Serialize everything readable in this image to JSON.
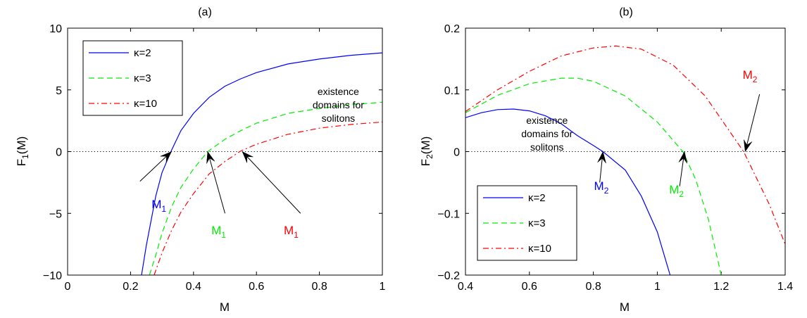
{
  "chart_data": [
    {
      "type": "line",
      "title": "(a)",
      "xlabel": "M",
      "ylabel": "F",
      "ylabel_sub": "1",
      "ylabel_tail": "(M)",
      "xlim": [
        0,
        1
      ],
      "ylim": [
        -10,
        10
      ],
      "xticks": [
        0,
        0.2,
        0.4,
        0.6,
        0.8,
        1
      ],
      "xtick_labels": [
        "0",
        "0.2",
        "0.4",
        "0.6",
        "0.8",
        "1"
      ],
      "yticks": [
        -10,
        -5,
        0,
        5,
        10
      ],
      "ytick_labels": [
        "−10",
        "−5",
        "0",
        "5",
        "10"
      ],
      "grid": false,
      "zero_line": "dotted",
      "legend_position": "top-left",
      "series": [
        {
          "name": "κ=2",
          "color": "#0000ff",
          "dash": "solid",
          "x": [
            0.235,
            0.25,
            0.28,
            0.3,
            0.33,
            0.36,
            0.4,
            0.45,
            0.5,
            0.55,
            0.6,
            0.7,
            0.8,
            0.9,
            1.0
          ],
          "y": [
            -10,
            -7.6,
            -3.6,
            -1.7,
            0.1,
            1.7,
            3.1,
            4.4,
            5.3,
            5.9,
            6.4,
            7.1,
            7.5,
            7.8,
            8.0
          ]
        },
        {
          "name": "κ=3",
          "color": "#00ee00",
          "dash": "dashed",
          "x": [
            0.26,
            0.28,
            0.3,
            0.33,
            0.36,
            0.4,
            0.445,
            0.5,
            0.55,
            0.6,
            0.7,
            0.8,
            0.9,
            1.0
          ],
          "y": [
            -10,
            -8.4,
            -6.6,
            -4.5,
            -2.9,
            -1.4,
            0.0,
            1.0,
            1.7,
            2.3,
            3.1,
            3.5,
            3.8,
            4.0
          ]
        },
        {
          "name": "κ=10",
          "color": "#ff0000",
          "dash": "dashdot",
          "x": [
            0.275,
            0.3,
            0.33,
            0.36,
            0.4,
            0.45,
            0.5,
            0.55,
            0.6,
            0.7,
            0.8,
            0.9,
            1.0
          ],
          "y": [
            -10,
            -8.2,
            -6.4,
            -4.9,
            -3.4,
            -1.8,
            -0.8,
            0.05,
            0.6,
            1.4,
            1.9,
            2.2,
            2.4
          ]
        }
      ],
      "annotations": {
        "text_lines": [
          "existence",
          "domains for",
          "solitons"
        ],
        "text_at": [
          0.86,
          4.6
        ],
        "labels": [
          {
            "main": "M",
            "sub": "1",
            "color": "#0000ff",
            "at": [
              0.29,
              -4.6
            ],
            "arrow_from": [
              0.23,
              -2.4
            ],
            "arrow_to": [
              0.33,
              0.0
            ]
          },
          {
            "main": "M",
            "sub": "1",
            "color": "#00ee00",
            "at": [
              0.48,
              -6.7
            ],
            "arrow_from": [
              0.5,
              -5.0
            ],
            "arrow_to": [
              0.445,
              0.0
            ]
          },
          {
            "main": "M",
            "sub": "1",
            "color": "#ff0000",
            "at": [
              0.71,
              -6.7
            ],
            "arrow_from": [
              0.74,
              -5.0
            ],
            "arrow_to": [
              0.555,
              0.0
            ]
          }
        ]
      }
    },
    {
      "type": "line",
      "title": "(b)",
      "xlabel": "M",
      "ylabel": "F",
      "ylabel_sub": "2",
      "ylabel_tail": "(M)",
      "xlim": [
        0.4,
        1.4
      ],
      "ylim": [
        -0.2,
        0.2
      ],
      "xticks": [
        0.4,
        0.6,
        0.8,
        1.0,
        1.2,
        1.4
      ],
      "xtick_labels": [
        "0.4",
        "0.6",
        "0.8",
        "1",
        "1.2",
        "1.4"
      ],
      "yticks": [
        -0.2,
        -0.1,
        0,
        0.1,
        0.2
      ],
      "ytick_labels": [
        "−0.2",
        "−0.1",
        "0",
        "0.1",
        "0.2"
      ],
      "grid": false,
      "zero_line": "dotted",
      "legend_position": "bottom-left",
      "series": [
        {
          "name": "κ=2",
          "color": "#0000ff",
          "dash": "solid",
          "x": [
            0.4,
            0.45,
            0.5,
            0.55,
            0.6,
            0.65,
            0.7,
            0.75,
            0.8,
            0.83,
            0.9,
            0.95,
            1.0,
            1.04
          ],
          "y": [
            0.055,
            0.063,
            0.068,
            0.069,
            0.066,
            0.058,
            0.045,
            0.026,
            0.01,
            0.0,
            -0.03,
            -0.072,
            -0.13,
            -0.2
          ]
        },
        {
          "name": "κ=3",
          "color": "#00ee00",
          "dash": "dashed",
          "x": [
            0.4,
            0.5,
            0.6,
            0.7,
            0.75,
            0.8,
            0.9,
            1.0,
            1.08,
            1.12,
            1.16,
            1.2
          ],
          "y": [
            0.063,
            0.091,
            0.11,
            0.119,
            0.119,
            0.114,
            0.09,
            0.048,
            0.0,
            -0.045,
            -0.11,
            -0.2
          ]
        },
        {
          "name": "κ=10",
          "color": "#ff0000",
          "dash": "dashdot",
          "x": [
            0.4,
            0.5,
            0.6,
            0.7,
            0.8,
            0.87,
            0.95,
            1.05,
            1.15,
            1.27,
            1.35,
            1.4
          ],
          "y": [
            0.065,
            0.1,
            0.13,
            0.155,
            0.168,
            0.171,
            0.166,
            0.14,
            0.09,
            0.0,
            -0.085,
            -0.15
          ]
        }
      ],
      "annotations": {
        "text_lines": [
          "existence",
          "domains for",
          "solitons"
        ],
        "text_at": [
          0.655,
          0.045
        ],
        "labels": [
          {
            "main": "M",
            "sub": "2",
            "color": "#0000ff",
            "at": [
              0.825,
              -0.062
            ],
            "arrow_from": [
              0.82,
              -0.05
            ],
            "arrow_to": [
              0.83,
              0.0
            ]
          },
          {
            "main": "M",
            "sub": "2",
            "color": "#00ee00",
            "at": [
              1.06,
              -0.068
            ],
            "arrow_from": [
              1.07,
              -0.056
            ],
            "arrow_to": [
              1.085,
              0.0
            ]
          },
          {
            "main": "M",
            "sub": "2",
            "color": "#ff0000",
            "at": [
              1.29,
              0.118
            ],
            "arrow_from": [
              1.32,
              0.093
            ],
            "arrow_to": [
              1.275,
              0.0
            ]
          }
        ]
      }
    }
  ]
}
